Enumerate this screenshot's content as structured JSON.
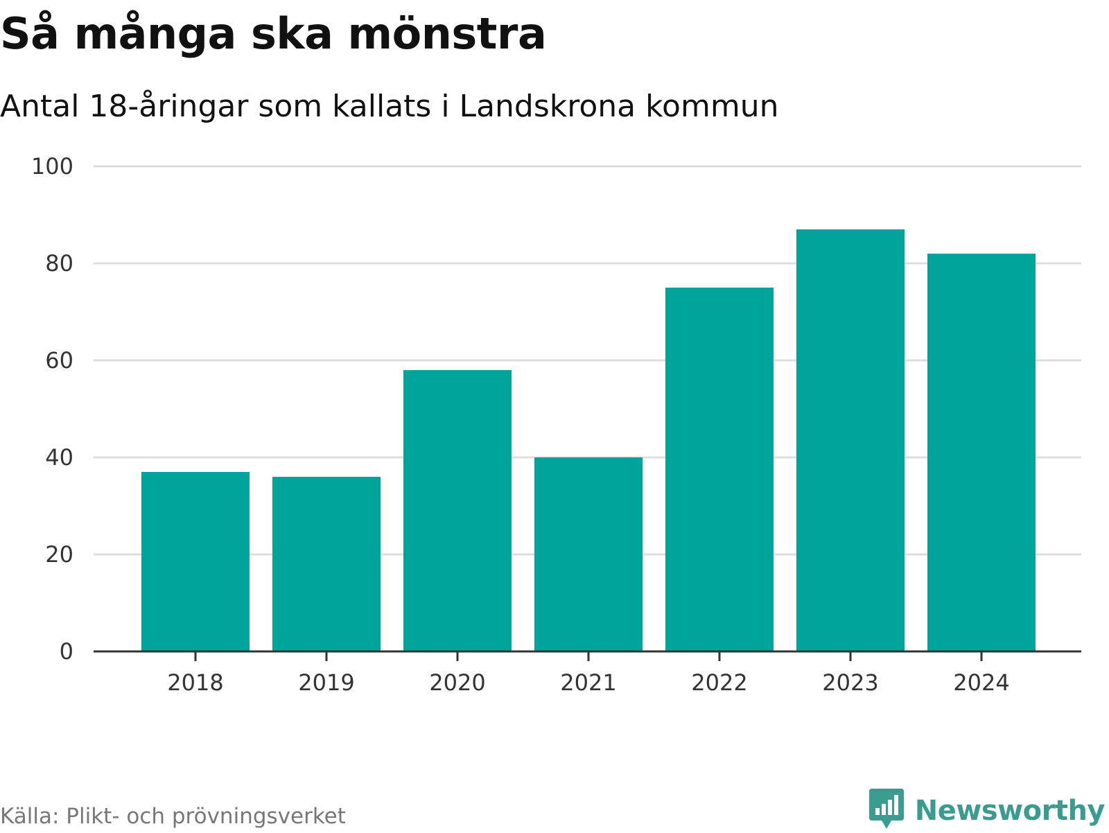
{
  "header": {
    "title": "Så många ska mönstra",
    "subtitle": "Antal 18-åringar som kallats i Landskrona kommun"
  },
  "footer": {
    "source": "Källa: Plikt- och prövningsverket",
    "brand": "Newsworthy",
    "brand_color": "#3a9c8f",
    "brand_icon": "bar-chart-speech-bubble-icon"
  },
  "chart_data": {
    "type": "bar",
    "categories": [
      "2018",
      "2019",
      "2020",
      "2021",
      "2022",
      "2023",
      "2024"
    ],
    "values": [
      37,
      36,
      58,
      40,
      75,
      87,
      82
    ],
    "ylim": [
      0,
      100
    ],
    "yticks": [
      0,
      20,
      40,
      60,
      80,
      100
    ],
    "grid": true,
    "bar_color": "#00a49a",
    "grid_color": "#dddddd",
    "axis_color": "#333333"
  }
}
